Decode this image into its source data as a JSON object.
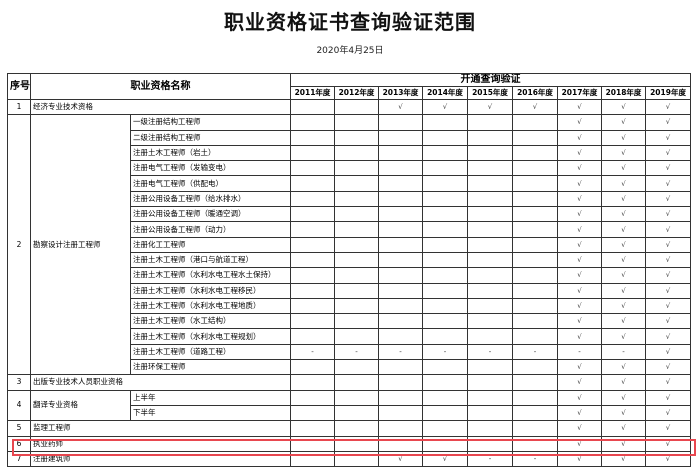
{
  "title": "职业资格证书查询验证范围",
  "date": "2020年4月25日",
  "header": {
    "no": "序号",
    "name": "职业资格名称",
    "group": "开通查询验证",
    "years": [
      "2011年度",
      "2012年度",
      "2013年度",
      "2014年度",
      "2015年度",
      "2016年度",
      "2017年度",
      "2018年度",
      "2019年度"
    ]
  },
  "highlight_color": "#e8474f",
  "rows": [
    {
      "no": "1",
      "name": "经济专业技术资格",
      "subs": [
        {
          "label": "",
          "marks": [
            "",
            "",
            "√",
            "√",
            "√",
            "√",
            "√",
            "√",
            "√"
          ]
        }
      ]
    },
    {
      "no": "2",
      "name": "勘察设计注册工程师",
      "subs": [
        {
          "label": "一级注册结构工程师",
          "marks": [
            "",
            "",
            "",
            "",
            "",
            "",
            "√",
            "√",
            "√"
          ]
        },
        {
          "label": "二级注册结构工程师",
          "marks": [
            "",
            "",
            "",
            "",
            "",
            "",
            "√",
            "√",
            "√"
          ]
        },
        {
          "label": "注册土木工程师（岩土）",
          "marks": [
            "",
            "",
            "",
            "",
            "",
            "",
            "√",
            "√",
            "√"
          ]
        },
        {
          "label": "注册电气工程师（发输变电）",
          "marks": [
            "",
            "",
            "",
            "",
            "",
            "",
            "√",
            "√",
            "√"
          ]
        },
        {
          "label": "注册电气工程师（供配电）",
          "marks": [
            "",
            "",
            "",
            "",
            "",
            "",
            "√",
            "√",
            "√"
          ]
        },
        {
          "label": "注册公用设备工程师（给水排水）",
          "marks": [
            "",
            "",
            "",
            "",
            "",
            "",
            "√",
            "√",
            "√"
          ]
        },
        {
          "label": "注册公用设备工程师（暖通空调）",
          "marks": [
            "",
            "",
            "",
            "",
            "",
            "",
            "√",
            "√",
            "√"
          ]
        },
        {
          "label": "注册公用设备工程师（动力）",
          "marks": [
            "",
            "",
            "",
            "",
            "",
            "",
            "√",
            "√",
            "√"
          ]
        },
        {
          "label": "注册化工工程师",
          "marks": [
            "",
            "",
            "",
            "",
            "",
            "",
            "√",
            "√",
            "√"
          ]
        },
        {
          "label": "注册土木工程师（港口与航道工程）",
          "marks": [
            "",
            "",
            "",
            "",
            "",
            "",
            "√",
            "√",
            "√"
          ]
        },
        {
          "label": "注册土木工程师（水利水电工程水土保持）",
          "marks": [
            "",
            "",
            "",
            "",
            "",
            "",
            "√",
            "√",
            "√"
          ]
        },
        {
          "label": "注册土木工程师（水利水电工程移民）",
          "marks": [
            "",
            "",
            "",
            "",
            "",
            "",
            "√",
            "√",
            "√"
          ]
        },
        {
          "label": "注册土木工程师（水利水电工程地质）",
          "marks": [
            "",
            "",
            "",
            "",
            "",
            "",
            "√",
            "√",
            "√"
          ]
        },
        {
          "label": "注册土木工程师（水工结构）",
          "marks": [
            "",
            "",
            "",
            "",
            "",
            "",
            "√",
            "√",
            "√"
          ]
        },
        {
          "label": "注册土木工程师（水利水电工程规划）",
          "marks": [
            "",
            "",
            "",
            "",
            "",
            "",
            "√",
            "√",
            "√"
          ]
        },
        {
          "label": "注册土木工程师（道路工程）",
          "marks": [
            "-",
            "-",
            "-",
            "-",
            "-",
            "-",
            "-",
            "-",
            "√"
          ]
        },
        {
          "label": "注册环保工程师",
          "marks": [
            "",
            "",
            "",
            "",
            "",
            "",
            "√",
            "√",
            "√"
          ]
        }
      ]
    },
    {
      "no": "3",
      "name": "出版专业技术人员职业资格",
      "subs": [
        {
          "label": "",
          "marks": [
            "",
            "",
            "",
            "",
            "",
            "",
            "√",
            "√",
            "√"
          ]
        }
      ]
    },
    {
      "no": "4",
      "name": "翻译专业资格",
      "subs": [
        {
          "label": "上半年",
          "marks": [
            "",
            "",
            "",
            "",
            "",
            "",
            "√",
            "√",
            "√"
          ]
        },
        {
          "label": "下半年",
          "marks": [
            "",
            "",
            "",
            "",
            "",
            "",
            "√",
            "√",
            "√"
          ]
        }
      ]
    },
    {
      "no": "5",
      "name": "监理工程师",
      "subs": [
        {
          "label": "",
          "marks": [
            "",
            "",
            "",
            "",
            "",
            "",
            "√",
            "√",
            "√"
          ]
        }
      ]
    },
    {
      "no": "6",
      "name": "执业药师",
      "subs": [
        {
          "label": "",
          "marks": [
            "",
            "",
            "",
            "",
            "",
            "",
            "√",
            "√",
            "√"
          ]
        }
      ]
    },
    {
      "no": "7",
      "name": "注册建筑师",
      "subs": [
        {
          "label": "",
          "marks": [
            "",
            "",
            "√",
            "√",
            "-",
            "-",
            "√",
            "√",
            "√"
          ]
        }
      ]
    }
  ]
}
